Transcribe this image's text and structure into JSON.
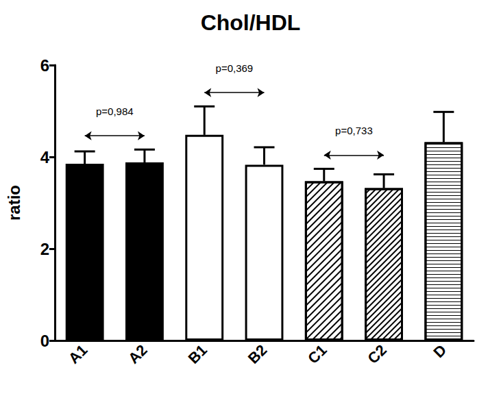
{
  "chart_data": {
    "type": "bar",
    "title": "Chol/HDL",
    "y_label": "ratio",
    "categories": [
      "A1",
      "A2",
      "B1",
      "B2",
      "C1",
      "C2",
      "D"
    ],
    "values": [
      3.85,
      3.88,
      4.48,
      3.83,
      3.47,
      3.32,
      4.32
    ],
    "errors": [
      0.27,
      0.28,
      0.62,
      0.38,
      0.27,
      0.3,
      0.66
    ],
    "colors": [
      "#000000",
      "#000000",
      "#ffffff",
      "#ffffff",
      "#ffffff",
      "#ffffff",
      "#ffffff"
    ],
    "ylim": [
      0,
      6
    ],
    "yticks": [
      0,
      2,
      4,
      6
    ],
    "grid": false,
    "annotations": [
      {
        "text": "p=0,984",
        "from": "A1",
        "to": "A2"
      },
      {
        "text": "p=0,369",
        "from": "B1",
        "to": "B2"
      },
      {
        "text": "p=0,733",
        "from": "C1",
        "to": "C2"
      }
    ]
  }
}
